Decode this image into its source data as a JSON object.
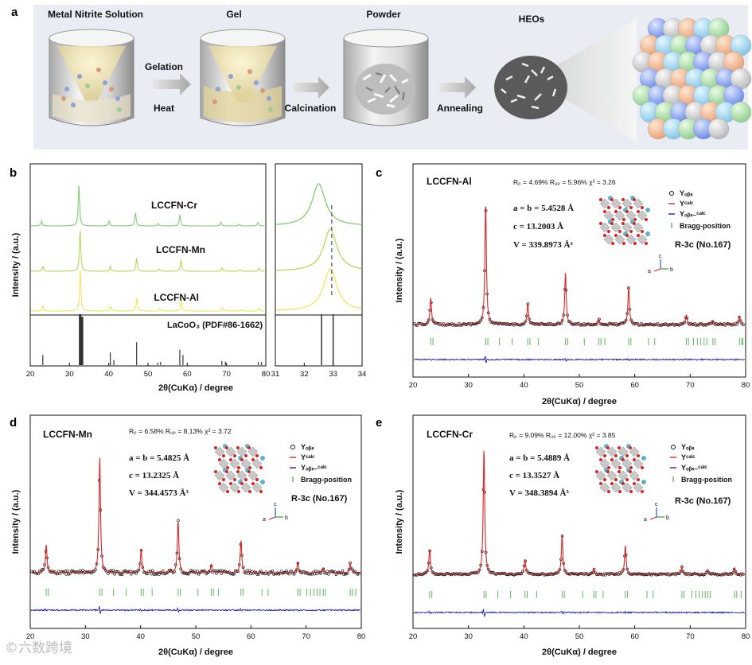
{
  "colors": {
    "obs": "#111111",
    "calc": "#d62728",
    "diff": "#1f1fb4",
    "bragg": "#5cb85c",
    "cr": "#7fce6f",
    "mn": "#b6d75a",
    "al": "#f0e65a",
    "ref": "#333333",
    "bg": "#e9edf3"
  },
  "panel_a": {
    "letter": "a",
    "steps": [
      "Metal Nitrite Solution",
      "Gel",
      "Powder",
      "HEOs"
    ],
    "arrows": [
      {
        "top": "Gelation",
        "bottom": "Heat"
      },
      {
        "top": "",
        "bottom": "Calcination"
      },
      {
        "top": "",
        "bottom": "Annealing"
      }
    ],
    "icons": [
      "beaker-solution-icon",
      "beaker-gel-icon",
      "beaker-powder-icon",
      "heo-particle-icon",
      "sphere-cluster-icon"
    ]
  },
  "panel_b": {
    "letter": "b",
    "ylabel": "Intensity / (a.u.)",
    "xlabel": "2θ(CuKα) / degree",
    "samples": [
      "LCCFN-Cr",
      "LCCFN-Mn",
      "LCCFN-Al"
    ],
    "reference": "LaCoO₃ (PDF#86-1662)",
    "left_ticks": [
      "20",
      "30",
      "40",
      "50",
      "60",
      "70",
      "80"
    ],
    "right_ticks": [
      "31",
      "32",
      "33",
      "34"
    ]
  },
  "panel_c": {
    "letter": "c",
    "sample": "LCCFN-Al",
    "stats": "Rₚ = 4.69%   Rᵤₚ = 5.96%   χ² = 3.26",
    "ab": "a = b = 5.4528 Å",
    "c": "c = 13.2003 Å",
    "v": "V =  339.8973 Å³",
    "space": "R-3c (No.167)"
  },
  "panel_d": {
    "letter": "d",
    "sample": "LCCFN-Mn",
    "stats": "Rₚ = 6.58%   Rᵤₚ = 8.13%   χ² = 3.72",
    "ab": "a = b = 5.4825 Å",
    "c": "c = 13.2325 Å",
    "v": "V =  344.4573 Å³",
    "space": "R-3c (No.167)"
  },
  "panel_e": {
    "letter": "e",
    "sample": "LCCFN-Cr",
    "stats": "Rₚ = 9.09%   Rᵤₚ = 12.00%  χ² = 3.85",
    "ab": "a = b = 5.4889 Å",
    "c": "c = 13.3527 Å",
    "v": "V =  348.3894 Å³",
    "space": "R-3c (No.167)"
  },
  "legend": {
    "obs": "Yₒᵦₛ",
    "calc": "Yᶜᵃˡᶜ",
    "diff": "Yₒᵦₛ₋ᶜᵃˡᶜ",
    "bragg": "Bragg-position"
  },
  "refine_axes": {
    "ylabel": "Intensity / (a.u.)",
    "xlabel": "2θ(CuKα) / degree",
    "ticks": [
      "20",
      "30",
      "40",
      "50",
      "60",
      "70",
      "80"
    ]
  },
  "axes_labels": {
    "a": "a",
    "b": "b",
    "c": "c"
  },
  "watermark": "©六数跨境",
  "chart_data": [
    {
      "type": "line",
      "title": "b",
      "xlabel": "2θ(CuKα) / degree",
      "ylabel": "Intensity / (a.u.)",
      "xlim": [
        20,
        80
      ],
      "series": [
        {
          "name": "LCCFN-Cr"
        },
        {
          "name": "LCCFN-Mn"
        },
        {
          "name": "LCCFN-Al"
        }
      ],
      "peaks": [
        {
          "x": 23.2,
          "h": 0.12
        },
        {
          "x": 32.7,
          "h": 1.0
        },
        {
          "x": 40.4,
          "h": 0.12
        },
        {
          "x": 47.1,
          "h": 0.32
        },
        {
          "x": 52.9,
          "h": 0.06
        },
        {
          "x": 58.4,
          "h": 0.27
        },
        {
          "x": 68.9,
          "h": 0.09
        },
        {
          "x": 73.5,
          "h": 0.04
        },
        {
          "x": 78.3,
          "h": 0.08
        }
      ],
      "reference_sticks": [
        {
          "x": 23.2,
          "h": 0.2
        },
        {
          "x": 32.7,
          "h": 1.0
        },
        {
          "x": 33.2,
          "h": 0.95
        },
        {
          "x": 40.4,
          "h": 0.25
        },
        {
          "x": 41.3,
          "h": 0.1
        },
        {
          "x": 47.1,
          "h": 0.45
        },
        {
          "x": 52.5,
          "h": 0.05
        },
        {
          "x": 53.2,
          "h": 0.06
        },
        {
          "x": 58.1,
          "h": 0.3
        },
        {
          "x": 58.9,
          "h": 0.2
        },
        {
          "x": 68.8,
          "h": 0.08
        },
        {
          "x": 69.7,
          "h": 0.07
        },
        {
          "x": 78.1,
          "h": 0.06
        },
        {
          "x": 78.9,
          "h": 0.06
        }
      ]
    },
    {
      "type": "line",
      "title": "b-zoom",
      "xlim": [
        31,
        34
      ],
      "series": [
        {
          "name": "LCCFN-Cr",
          "peak": 32.5
        },
        {
          "name": "LCCFN-Mn",
          "peak": 32.9
        },
        {
          "name": "LCCFN-Al",
          "peak": 32.9
        }
      ],
      "reference_sticks": [
        {
          "x": 32.6,
          "h": 1.0
        },
        {
          "x": 33.0,
          "h": 1.0
        }
      ]
    },
    {
      "type": "line",
      "title": "LCCFN-Al",
      "xlim": [
        20,
        80
      ],
      "peaks": [
        {
          "x": 23.2,
          "h": 0.22
        },
        {
          "x": 33.1,
          "h": 1.0
        },
        {
          "x": 40.7,
          "h": 0.17
        },
        {
          "x": 47.5,
          "h": 0.42
        },
        {
          "x": 53.5,
          "h": 0.05
        },
        {
          "x": 58.9,
          "h": 0.31
        },
        {
          "x": 69.3,
          "h": 0.08
        },
        {
          "x": 74.1,
          "h": 0.03
        },
        {
          "x": 78.9,
          "h": 0.07
        }
      ]
    },
    {
      "type": "line",
      "title": "LCCFN-Mn",
      "xlim": [
        20,
        80
      ],
      "peaks": [
        {
          "x": 22.9,
          "h": 0.24
        },
        {
          "x": 32.6,
          "h": 1.0
        },
        {
          "x": 40.1,
          "h": 0.2
        },
        {
          "x": 46.8,
          "h": 0.45
        },
        {
          "x": 52.8,
          "h": 0.07
        },
        {
          "x": 58.2,
          "h": 0.28
        },
        {
          "x": 68.5,
          "h": 0.09
        },
        {
          "x": 73.1,
          "h": 0.04
        },
        {
          "x": 78.0,
          "h": 0.08
        }
      ]
    },
    {
      "type": "line",
      "title": "LCCFN-Cr",
      "xlim": [
        20,
        80
      ],
      "peaks": [
        {
          "x": 23.0,
          "h": 0.2
        },
        {
          "x": 32.8,
          "h": 1.0
        },
        {
          "x": 40.2,
          "h": 0.12
        },
        {
          "x": 46.9,
          "h": 0.31
        },
        {
          "x": 52.6,
          "h": 0.04
        },
        {
          "x": 58.3,
          "h": 0.23
        },
        {
          "x": 68.5,
          "h": 0.06
        },
        {
          "x": 73.2,
          "h": 0.03
        },
        {
          "x": 78.0,
          "h": 0.05
        }
      ]
    }
  ]
}
